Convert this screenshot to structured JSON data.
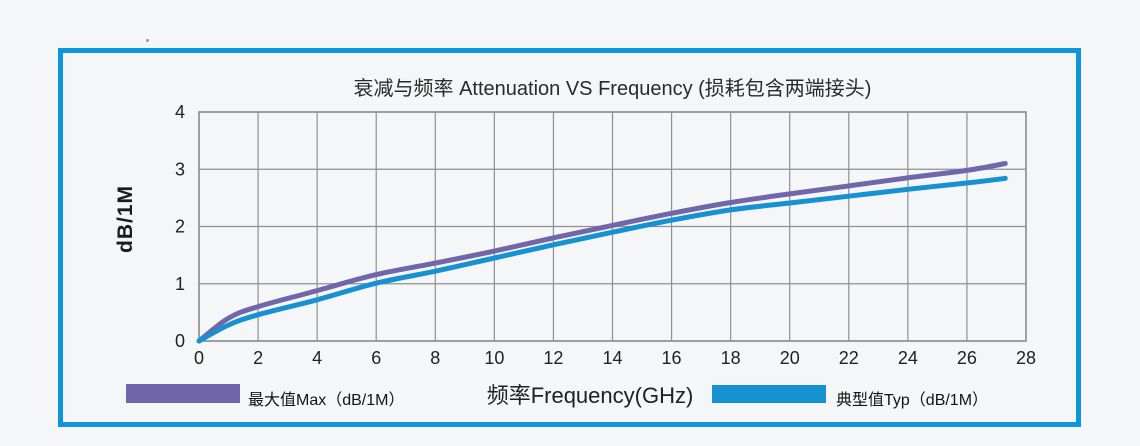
{
  "chart_data": {
    "type": "line",
    "title": "衰减与频率 Attenuation VS Frequency (损耗包含两端接头)",
    "xlabel": "频率Frequency(GHz)",
    "ylabel": "dB/1M",
    "xlim": [
      0,
      28
    ],
    "ylim": [
      0,
      4
    ],
    "x_ticks": [
      0,
      2,
      4,
      6,
      8,
      10,
      12,
      14,
      16,
      18,
      20,
      22,
      24,
      26,
      28
    ],
    "y_ticks": [
      0,
      1,
      2,
      3,
      4
    ],
    "grid": true,
    "legend_position": "bottom",
    "x": [
      0,
      1,
      2,
      4,
      6,
      8,
      10,
      12,
      14,
      16,
      18,
      20,
      22,
      24,
      26,
      27.3
    ],
    "series": [
      {
        "name": "最大值Max（dB/1M）",
        "color": "#7166aa",
        "values": [
          0,
          0.4,
          0.6,
          0.88,
          1.16,
          1.36,
          1.57,
          1.8,
          2.02,
          2.23,
          2.42,
          2.57,
          2.71,
          2.85,
          2.98,
          3.1
        ]
      },
      {
        "name": "典型值Typ（dB/1M）",
        "color": "#1691d2",
        "values": [
          0,
          0.28,
          0.46,
          0.72,
          1.01,
          1.22,
          1.45,
          1.68,
          1.9,
          2.11,
          2.29,
          2.41,
          2.53,
          2.65,
          2.76,
          2.84
        ]
      }
    ]
  },
  "colors": {
    "background": "#f5f6f7",
    "frame_border": "#0d97da",
    "grid": "#8d9093",
    "tick_text": "#222222"
  }
}
